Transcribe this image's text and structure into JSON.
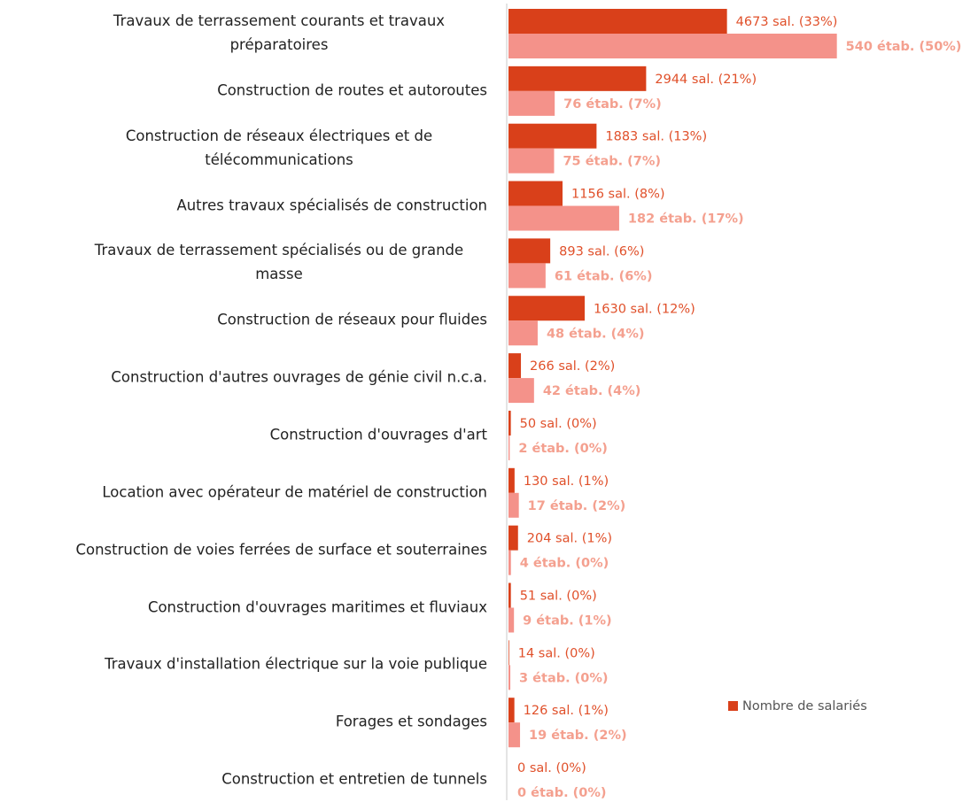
{
  "chart_data": {
    "type": "bar",
    "orientation": "horizontal",
    "categories": [
      "Travaux de terrassement courants et travaux préparatoires",
      "Construction de routes et autoroutes",
      "Construction de réseaux électriques et de télécommunications",
      "Autres travaux spécialisés de construction",
      "Travaux de terrassement spécialisés ou de grande masse",
      "Construction de réseaux pour fluides",
      "Construction d'autres ouvrages de génie civil n.c.a.",
      "Construction d'ouvrages d'art",
      "Location avec opérateur de matériel de construction",
      "Construction de voies ferrées de surface et souterraines",
      "Construction d'ouvrages maritimes et fluviaux",
      "Travaux d'installation électrique sur la voie publique",
      "Forages et sondages",
      "Construction et entretien de tunnels"
    ],
    "series": [
      {
        "name": "Nombre de salariés",
        "color": "#d9401a",
        "label_color": "#e0502a",
        "values": [
          4673,
          2944,
          1883,
          1156,
          893,
          1630,
          266,
          50,
          130,
          204,
          51,
          14,
          126,
          0
        ],
        "value_labels": [
          "4673 sal. (33%)",
          "2944 sal. (21%)",
          "1883 sal. (13%)",
          "1156 sal. (8%)",
          "893 sal. (6%)",
          "1630 sal. (12%)",
          "266 sal. (2%)",
          "50 sal. (0%)",
          "130 sal. (1%)",
          "204 sal. (1%)",
          "51 sal. (0%)",
          "14 sal. (0%)",
          "126 sal. (1%)",
          "0 sal. (0%)"
        ]
      },
      {
        "color": "#f4928a",
        "label_color": "#f4a08f",
        "values": [
          540,
          76,
          75,
          182,
          61,
          48,
          42,
          2,
          17,
          4,
          9,
          3,
          19,
          0
        ],
        "value_labels": [
          "540 étab. (50%)",
          "76 étab. (7%)",
          "75 étab. (7%)",
          "182 étab. (17%)",
          "61 étab. (6%)",
          "48 étab. (4%)",
          "42 étab. (4%)",
          "2 étab. (0%)",
          "17 étab. (2%)",
          "4 étab. (0%)",
          "9 étab. (1%)",
          "3 étab. (0%)",
          "19 étab. (2%)",
          "0 étab. (0%)"
        ]
      }
    ],
    "legend": "right"
  }
}
